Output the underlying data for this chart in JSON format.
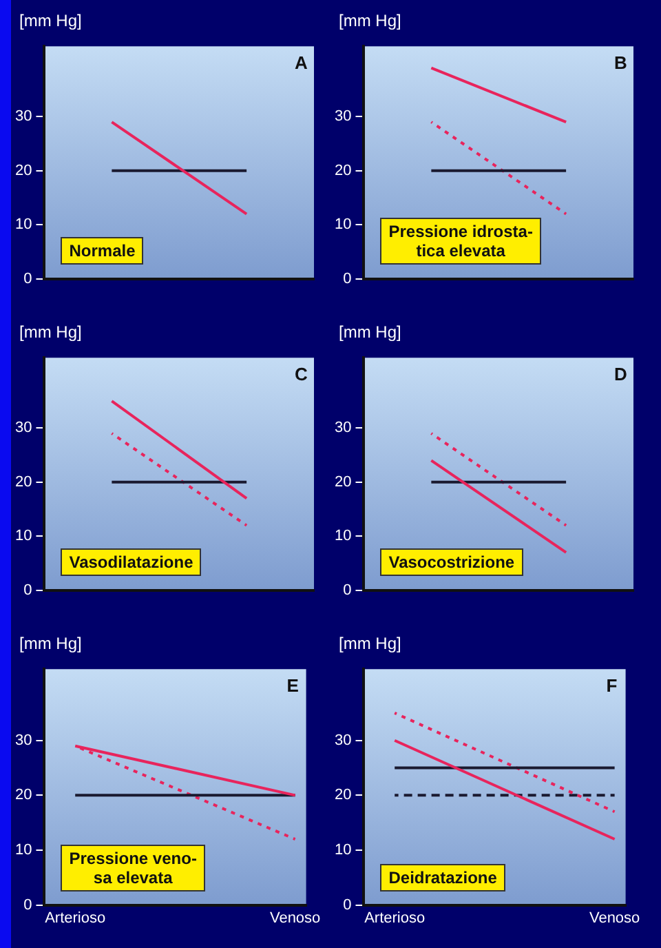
{
  "chart_data": [
    {
      "type": "line",
      "ylabel": "[mm Hg]",
      "annotations": [
        "A",
        "Normale"
      ],
      "categories": [
        null,
        null
      ],
      "ylim": [
        0,
        43
      ],
      "yticks": [
        0,
        10,
        20,
        30
      ],
      "grid": false,
      "marker": "none",
      "legend": false,
      "tick_labels": "y",
      "series": [
        {
          "color": "#e8245c",
          "values": [
            29,
            12
          ]
        },
        {
          "color": "#1a1a30",
          "values": [
            20,
            20
          ]
        }
      ]
    },
    {
      "type": "line",
      "ylabel": "[mm Hg]",
      "annotations": [
        "B",
        "Pressione idrosta-\ntica elevata"
      ],
      "categories": [
        null,
        null
      ],
      "ylim": [
        0,
        43
      ],
      "yticks": [
        0,
        10,
        20,
        30
      ],
      "grid": false,
      "marker": "none",
      "legend": false,
      "tick_labels": "y",
      "series": [
        {
          "color": "#e8245c",
          "values": [
            39,
            29
          ]
        },
        {
          "color": "#1a1a30",
          "values": [
            20,
            20
          ]
        },
        {
          "color": "#e8245c",
          "values": [
            29,
            12
          ],
          "line_style": "dotted"
        }
      ]
    },
    {
      "type": "line",
      "ylabel": "[mm Hg]",
      "annotations": [
        "C",
        "Vasodilatazione"
      ],
      "categories": [
        null,
        null
      ],
      "ylim": [
        0,
        43
      ],
      "yticks": [
        0,
        10,
        20,
        30
      ],
      "grid": false,
      "marker": "none",
      "legend": false,
      "tick_labels": "y",
      "series": [
        {
          "color": "#e8245c",
          "values": [
            35,
            17
          ]
        },
        {
          "color": "#1a1a30",
          "values": [
            20,
            20
          ]
        },
        {
          "color": "#e8245c",
          "values": [
            29,
            12
          ],
          "line_style": "dotted"
        }
      ]
    },
    {
      "type": "line",
      "ylabel": "[mm Hg]",
      "annotations": [
        "D",
        "Vasocostrizione"
      ],
      "categories": [
        null,
        null
      ],
      "ylim": [
        0,
        43
      ],
      "yticks": [
        0,
        10,
        20,
        30
      ],
      "grid": false,
      "marker": "none",
      "legend": false,
      "tick_labels": "y",
      "series": [
        {
          "color": "#e8245c",
          "values": [
            24,
            7
          ]
        },
        {
          "color": "#1a1a30",
          "values": [
            20,
            20
          ]
        },
        {
          "color": "#e8245c",
          "values": [
            29,
            12
          ],
          "line_style": "dotted"
        }
      ]
    },
    {
      "type": "line",
      "ylabel": "[mm Hg]",
      "annotations": [
        "E",
        "Pressione veno-\nsa elevata"
      ],
      "categories": [
        "Arterioso",
        "Venoso"
      ],
      "ylim": [
        0,
        43
      ],
      "yticks": [
        0,
        10,
        20,
        30
      ],
      "grid": false,
      "marker": "none",
      "legend": false,
      "series": [
        {
          "color": "#e8245c",
          "values": [
            29,
            20
          ]
        },
        {
          "color": "#1a1a30",
          "values": [
            20,
            20
          ]
        },
        {
          "color": "#e8245c",
          "values": [
            29,
            12
          ],
          "line_style": "dotted"
        }
      ]
    },
    {
      "type": "line",
      "ylabel": "[mm Hg]",
      "annotations": [
        "F",
        "Deidratazione"
      ],
      "categories": [
        "Arterioso",
        "Venoso"
      ],
      "ylim": [
        0,
        43
      ],
      "yticks": [
        0,
        10,
        20,
        30
      ],
      "grid": false,
      "marker": "none",
      "legend": false,
      "series": [
        {
          "color": "#e8245c",
          "values": [
            30,
            12
          ]
        },
        {
          "color": "#1a1a30",
          "values": [
            25,
            25
          ]
        },
        {
          "color": "#e8245c",
          "values": [
            35,
            17
          ],
          "line_style": "dotted"
        },
        {
          "color": "#1a1a30",
          "values": [
            20,
            20
          ],
          "line_style": "dashed"
        }
      ]
    }
  ]
}
